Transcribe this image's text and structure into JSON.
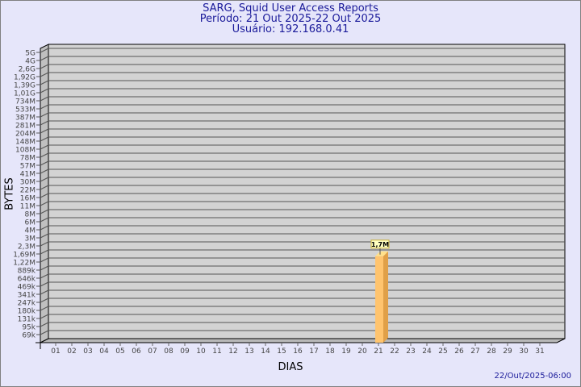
{
  "chart_data": {
    "type": "bar",
    "title": "SARG, Squid User Access Reports",
    "subtitle1": "Período: 21 Out 2025-22 Out 2025",
    "subtitle2": "Usuário: 192.168.0.41",
    "xlabel": "DIAS",
    "ylabel": "BYTES",
    "footer": "22/Out/2025-06:00",
    "y_scale": "log",
    "grid": true,
    "y_tick_labels": [
      "5G",
      "4G",
      "2,6G",
      "1,92G",
      "1,39G",
      "1,01G",
      "734M",
      "533M",
      "387M",
      "281M",
      "204M",
      "148M",
      "108M",
      "78M",
      "57M",
      "41M",
      "30M",
      "22M",
      "16M",
      "11M",
      "8M",
      "6M",
      "4M",
      "3M",
      "2,3M",
      "1,69M",
      "1,22M",
      "889k",
      "646k",
      "469k",
      "341k",
      "247k",
      "180k",
      "131k",
      "95k",
      "69k"
    ],
    "categories": [
      "01",
      "02",
      "03",
      "04",
      "05",
      "06",
      "07",
      "08",
      "09",
      "10",
      "11",
      "12",
      "13",
      "14",
      "15",
      "16",
      "17",
      "18",
      "19",
      "20",
      "21",
      "22",
      "23",
      "24",
      "25",
      "26",
      "27",
      "28",
      "29",
      "30",
      "31"
    ],
    "bars": [
      {
        "category": "21",
        "value": 1700000,
        "label": "1,7M"
      }
    ],
    "colors": {
      "bar_front": "#ffc46e",
      "bar_side": "#e0a048",
      "bar_top": "#ffe08a",
      "wall": "#d3d3d3",
      "text": "#1a1a9a",
      "label_bg": "#ffffc0"
    }
  }
}
